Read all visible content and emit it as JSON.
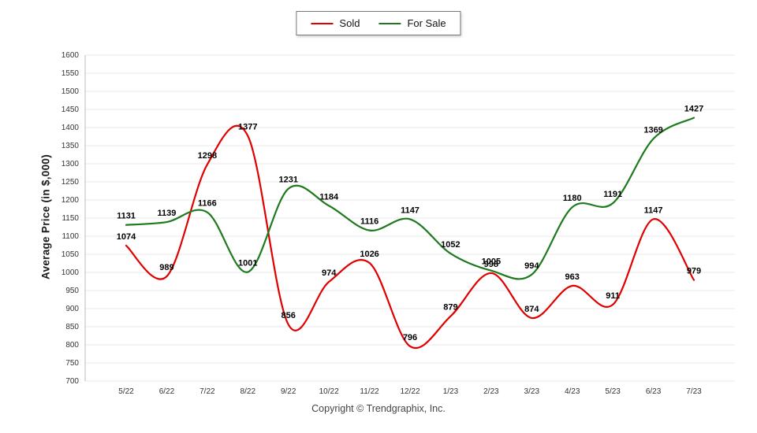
{
  "chart_data": {
    "type": "line",
    "title": "",
    "xlabel": "",
    "ylabel": "Average Price (in $,000)",
    "ylim": [
      700,
      1600
    ],
    "ytick_step": 50,
    "grid": true,
    "legend_position": "top-center",
    "categories": [
      "5/22",
      "6/22",
      "7/22",
      "8/22",
      "9/22",
      "10/22",
      "11/22",
      "12/22",
      "1/23",
      "2/23",
      "3/23",
      "4/23",
      "5/23",
      "6/23",
      "7/23"
    ],
    "series": [
      {
        "name": "Sold",
        "color": "#e00000",
        "values": [
          1074,
          989,
          1298,
          1377,
          856,
          974,
          1026,
          796,
          879,
          998,
          874,
          963,
          911,
          1147,
          979
        ]
      },
      {
        "name": "For Sale",
        "color": "#1e7a1e",
        "values": [
          1131,
          1139,
          1166,
          1001,
          1231,
          1184,
          1116,
          1147,
          1052,
          1005,
          994,
          1180,
          1191,
          1369,
          1427
        ]
      }
    ],
    "footer": "Copyright © Trendgraphix, Inc."
  }
}
